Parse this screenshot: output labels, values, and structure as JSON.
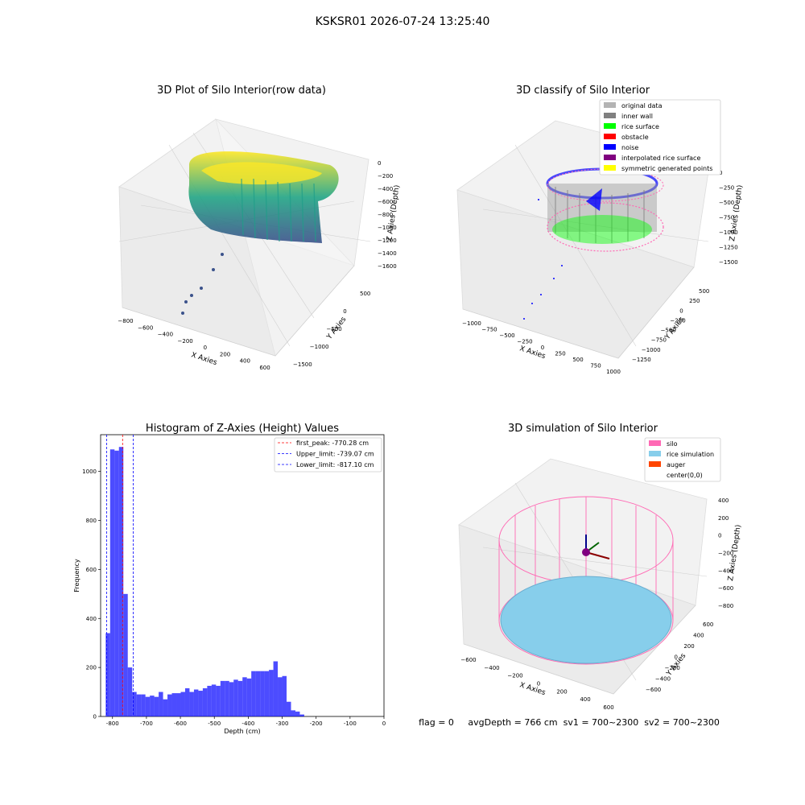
{
  "figure": {
    "title": "KSKSR01 2026-07-24 13:25:40",
    "status_line": "flag = 0     avgDepth = 766 cm  sv1 = 700~2300  sv2 = 700~2300"
  },
  "colors": {
    "original_data": "#b3b3b3",
    "inner_wall": "#808080",
    "rice_surface": "#00ff00",
    "obstacle": "#ff0000",
    "noise": "#0000ff",
    "interpolated_rice_surface": "#800080",
    "symmetric_generated_points": "#ffff00",
    "silo": "#ff69b4",
    "rice_simulation": "#87ceeb",
    "auger": "#ff4500",
    "histogram": "#0000ff",
    "first_peak_line": "#ff0000",
    "limit_line": "#0000ff"
  },
  "chart_data": [
    {
      "type": "scatter",
      "title": "3D Plot of Silo Interior(row data)",
      "xlabel": "X Axies",
      "ylabel": "Y Axies",
      "zlabel": "Z Axies (Depth)",
      "x_ticks": [
        "−800",
        "−600",
        "−400",
        "−200",
        "0",
        "200",
        "400",
        "600"
      ],
      "y_ticks": [
        "500",
        "0",
        "−500",
        "−1000",
        "−1500"
      ],
      "z_ticks": [
        "0",
        "−200",
        "−400",
        "−600",
        "−800",
        "−1000",
        "−1200",
        "−1400",
        "−1600"
      ],
      "xlim": [
        -850,
        650
      ],
      "ylim": [
        -1500,
        600
      ],
      "zlim": [
        -1700,
        0
      ]
    },
    {
      "type": "scatter",
      "title": "3D classify of Silo Interior",
      "xlabel": "X Axies",
      "ylabel": "Y Axies",
      "zlabel": "Z Axies (Depth)",
      "x_ticks": [
        "−1000",
        "−750",
        "−500",
        "−250",
        "0",
        "250",
        "500",
        "750",
        "1000"
      ],
      "y_ticks": [
        "500",
        "250",
        "0",
        "−250",
        "−500",
        "−750",
        "−1000",
        "−1250"
      ],
      "z_ticks": [
        "0",
        "−250",
        "−500",
        "−750",
        "−1000",
        "−1250",
        "−1500"
      ],
      "legend": [
        "original data",
        "inner wall",
        "rice surface",
        "obstacle",
        "noise",
        "interpolated rice surface",
        "symmetric generated points"
      ],
      "legend_position": "top-right"
    },
    {
      "type": "bar",
      "title": "Histogram of Z-Axies (Height) Values",
      "xlabel": "Depth (cm)",
      "ylabel": "Frequency",
      "xlim": [
        -835,
        0
      ],
      "ylim": [
        0,
        1150
      ],
      "x_ticks": [
        -800,
        -700,
        -600,
        -500,
        -400,
        -300,
        -200,
        -100,
        0
      ],
      "y_ticks": [
        0,
        200,
        400,
        600,
        800,
        1000
      ],
      "bin_start": -820,
      "bin_width": 13,
      "values": [
        340,
        1090,
        1085,
        1100,
        500,
        200,
        100,
        90,
        90,
        80,
        85,
        80,
        100,
        70,
        90,
        95,
        95,
        100,
        115,
        100,
        110,
        105,
        115,
        125,
        130,
        125,
        145,
        145,
        140,
        150,
        145,
        160,
        155,
        185,
        185,
        185,
        185,
        190,
        225,
        160,
        165,
        60,
        25,
        20,
        8
      ],
      "vlines": [
        {
          "label": "first_peak: -770.28 cm",
          "x": -770.28,
          "color": "#ff0000"
        },
        {
          "label": "Upper_limit: -739.07 cm",
          "x": -739.07,
          "color": "#0000ff"
        },
        {
          "label": "Lower_limit: -817.10 cm",
          "x": -817.1,
          "color": "#0000ff"
        }
      ],
      "legend_position": "top-right"
    },
    {
      "type": "scatter",
      "title": "3D simulation of Silo Interior",
      "xlabel": "X Axies",
      "ylabel": "Y Axies",
      "zlabel": "Z Axies (Depth)",
      "x_ticks": [
        "−600",
        "−400",
        "−200",
        "0",
        "200",
        "400",
        "600"
      ],
      "y_ticks": [
        "600",
        "400",
        "200",
        "0",
        "−200",
        "−400",
        "−600"
      ],
      "z_ticks": [
        "400",
        "200",
        "0",
        "−200",
        "−400",
        "−600",
        "−800"
      ],
      "legend": [
        "silo",
        "rice simulation",
        "auger",
        "center(0,0)"
      ],
      "legend_position": "top-right"
    }
  ]
}
